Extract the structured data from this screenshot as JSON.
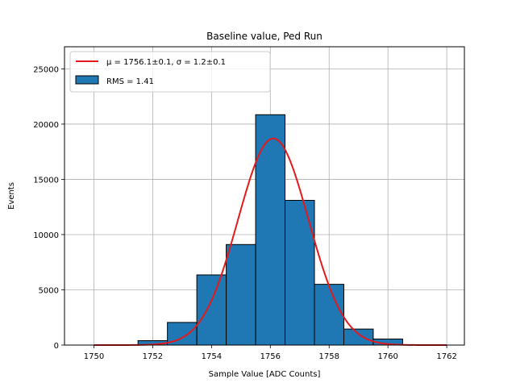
{
  "chart_data": {
    "type": "bar",
    "title": "Baseline value, Ped Run",
    "xlabel": "Sample Value [ADC Counts]",
    "ylabel": "Events",
    "xlim": [
      1749.0,
      1762.6
    ],
    "ylim": [
      0,
      27000
    ],
    "x_ticks": [
      1750,
      1752,
      1754,
      1756,
      1758,
      1760,
      1762
    ],
    "y_ticks": [
      0,
      5000,
      10000,
      15000,
      20000,
      25000
    ],
    "grid": true,
    "legend_position": "top-left",
    "histogram": {
      "name": "RMS = 1.41",
      "color": "#1f77b4",
      "edge_color": "#000000",
      "bin_edges": [
        1749.5,
        1750.5,
        1751.5,
        1752.5,
        1753.5,
        1754.5,
        1755.5,
        1756.5,
        1757.5,
        1758.5,
        1759.5,
        1760.5,
        1761.5,
        1762.5
      ],
      "counts": [
        0,
        0,
        400,
        2050,
        6350,
        9100,
        20850,
        13100,
        5500,
        1450,
        550,
        0,
        0
      ]
    },
    "fit": {
      "name": "μ = 1756.1±0.1, σ = 1.2±0.1",
      "color": "#e31a1c",
      "mu": 1756.1,
      "sigma": 1.2,
      "amplitude": 18700,
      "x_range": [
        1750,
        1762
      ]
    }
  }
}
